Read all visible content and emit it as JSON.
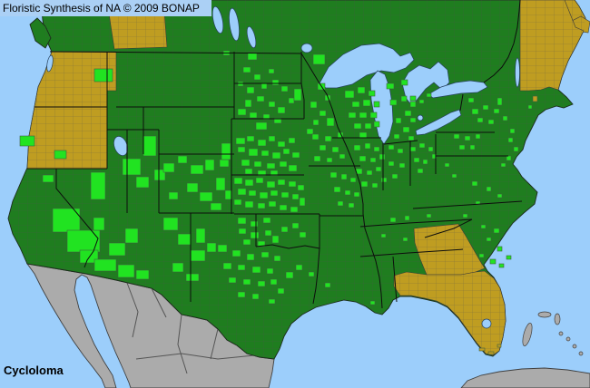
{
  "header": {
    "title": "Floristic Synthesis of NA © 2009 BONAP"
  },
  "footer": {
    "taxon": "Cycloloma"
  },
  "colors": {
    "water": "#9CCEFB",
    "state_present": "#1F7D1F",
    "county_present": "#21E321",
    "state_absent": "#BF9D21",
    "outside_region": "#ABABAB",
    "title_background": "#ABD0F5"
  },
  "map": {
    "absent_regions": [
      "Washington-Oregon",
      "Alberta",
      "Maritimes",
      "Maine-NewHampshire-Vermont",
      "Georgia",
      "Florida"
    ],
    "county_markers": [
      [
        22,
        150,
        16,
        11
      ],
      [
        60,
        166,
        13,
        9
      ],
      [
        47,
        193,
        12,
        8
      ],
      [
        58,
        230,
        30,
        26
      ],
      [
        74,
        254,
        36,
        24
      ],
      [
        88,
        276,
        20,
        14
      ],
      [
        100,
        190,
        16,
        30
      ],
      [
        103,
        240,
        12,
        14
      ],
      [
        135,
        175,
        20,
        18
      ],
      [
        150,
        195,
        14,
        12
      ],
      [
        158,
        150,
        14,
        22
      ],
      [
        170,
        187,
        12,
        12
      ],
      [
        104,
        286,
        24,
        13
      ],
      [
        130,
        292,
        18,
        14
      ],
      [
        150,
        298,
        14,
        10
      ],
      [
        120,
        268,
        18,
        14
      ],
      [
        138,
        252,
        14,
        16
      ],
      [
        104,
        76,
        20,
        14
      ],
      [
        180,
        240,
        16,
        14
      ],
      [
        196,
        258,
        14,
        12
      ],
      [
        210,
        276,
        16,
        12
      ],
      [
        190,
        290,
        12,
        10
      ],
      [
        216,
        252,
        10,
        16
      ],
      [
        205,
        302,
        14,
        8
      ],
      [
        228,
        268,
        10,
        10
      ],
      [
        180,
        180,
        12,
        10
      ],
      [
        196,
        172,
        10,
        8
      ],
      [
        210,
        182,
        14,
        10
      ],
      [
        226,
        176,
        10,
        12
      ],
      [
        206,
        202,
        12,
        10
      ],
      [
        220,
        212,
        14,
        10
      ],
      [
        238,
        196,
        10,
        14
      ],
      [
        186,
        212,
        10,
        8
      ],
      [
        232,
        224,
        12,
        8
      ],
      [
        242,
        176,
        10,
        8
      ],
      [
        248,
        210,
        8,
        10
      ],
      [
        246,
        56,
        7,
        5
      ],
      [
        273,
        58,
        10,
        8
      ],
      [
        268,
        74,
        8,
        6
      ],
      [
        280,
        82,
        7,
        6
      ],
      [
        262,
        90,
        6,
        5
      ],
      [
        272,
        96,
        8,
        7
      ],
      [
        288,
        92,
        6,
        6
      ],
      [
        300,
        88,
        7,
        6
      ],
      [
        296,
        76,
        6,
        5
      ],
      [
        310,
        95,
        7,
        6
      ],
      [
        283,
        106,
        8,
        6
      ],
      [
        296,
        112,
        7,
        6
      ],
      [
        270,
        110,
        7,
        8
      ],
      [
        306,
        118,
        8,
        7
      ],
      [
        318,
        108,
        6,
        6
      ],
      [
        324,
        98,
        8,
        13
      ],
      [
        345,
        60,
        13,
        11
      ],
      [
        350,
        92,
        8,
        7
      ],
      [
        342,
        112,
        7,
        7
      ],
      [
        358,
        105,
        6,
        6
      ],
      [
        352,
        122,
        7,
        6
      ],
      [
        345,
        132,
        6,
        6
      ],
      [
        360,
        130,
        8,
        9
      ],
      [
        338,
        142,
        7,
        6
      ],
      [
        262,
        120,
        9,
        7
      ],
      [
        275,
        124,
        8,
        6
      ],
      [
        290,
        126,
        7,
        6
      ],
      [
        302,
        130,
        8,
        6
      ],
      [
        282,
        135,
        12,
        8
      ],
      [
        244,
        158,
        10,
        18
      ],
      [
        260,
        152,
        10,
        7
      ],
      [
        272,
        150,
        8,
        6
      ],
      [
        284,
        154,
        9,
        7
      ],
      [
        296,
        150,
        7,
        6
      ],
      [
        306,
        156,
        8,
        6
      ],
      [
        318,
        152,
        7,
        6
      ],
      [
        262,
        162,
        8,
        6
      ],
      [
        274,
        164,
        10,
        8
      ],
      [
        288,
        166,
        8,
        6
      ],
      [
        300,
        168,
        9,
        7
      ],
      [
        312,
        164,
        7,
        6
      ],
      [
        322,
        168,
        8,
        6
      ],
      [
        266,
        176,
        9,
        7
      ],
      [
        280,
        178,
        8,
        6
      ],
      [
        294,
        180,
        9,
        6
      ],
      [
        308,
        178,
        8,
        6
      ],
      [
        318,
        182,
        9,
        7
      ],
      [
        270,
        186,
        8,
        6
      ],
      [
        284,
        188,
        9,
        6
      ],
      [
        298,
        188,
        8,
        6
      ],
      [
        258,
        196,
        9,
        7
      ],
      [
        270,
        198,
        9,
        7
      ],
      [
        282,
        196,
        8,
        6
      ],
      [
        294,
        200,
        9,
        7
      ],
      [
        306,
        198,
        8,
        6
      ],
      [
        318,
        200,
        8,
        6
      ],
      [
        328,
        204,
        7,
        6
      ],
      [
        262,
        208,
        9,
        7
      ],
      [
        274,
        210,
        8,
        6
      ],
      [
        286,
        212,
        9,
        7
      ],
      [
        298,
        210,
        8,
        6
      ],
      [
        310,
        212,
        8,
        6
      ],
      [
        322,
        214,
        7,
        6
      ],
      [
        258,
        220,
        8,
        6
      ],
      [
        270,
        222,
        9,
        7
      ],
      [
        284,
        224,
        8,
        6
      ],
      [
        296,
        222,
        8,
        6
      ],
      [
        308,
        226,
        8,
        6
      ],
      [
        320,
        228,
        8,
        6
      ],
      [
        330,
        218,
        6,
        9
      ],
      [
        262,
        240,
        9,
        7
      ],
      [
        276,
        244,
        8,
        6
      ],
      [
        290,
        240,
        8,
        6
      ],
      [
        263,
        252,
        8,
        6
      ],
      [
        276,
        256,
        9,
        7
      ],
      [
        292,
        254,
        7,
        6
      ],
      [
        268,
        264,
        8,
        6
      ],
      [
        284,
        266,
        8,
        6
      ],
      [
        300,
        260,
        7,
        8
      ],
      [
        310,
        250,
        7,
        6
      ],
      [
        322,
        246,
        7,
        6
      ],
      [
        330,
        256,
        7,
        6
      ],
      [
        240,
        270,
        10,
        8
      ],
      [
        256,
        276,
        9,
        7
      ],
      [
        272,
        280,
        8,
        7
      ],
      [
        288,
        278,
        8,
        6
      ],
      [
        302,
        282,
        7,
        6
      ],
      [
        246,
        290,
        9,
        7
      ],
      [
        262,
        292,
        8,
        6
      ],
      [
        278,
        294,
        9,
        7
      ],
      [
        294,
        296,
        7,
        6
      ],
      [
        252,
        306,
        8,
        6
      ],
      [
        268,
        308,
        8,
        6
      ],
      [
        284,
        310,
        8,
        6
      ],
      [
        298,
        308,
        7,
        6
      ],
      [
        262,
        322,
        8,
        6
      ],
      [
        278,
        324,
        7,
        6
      ],
      [
        306,
        318,
        7,
        6
      ],
      [
        315,
        300,
        8,
        7
      ],
      [
        326,
        292,
        7,
        6
      ],
      [
        296,
        330,
        7,
        5
      ],
      [
        340,
        300,
        6,
        5
      ],
      [
        358,
        312,
        6,
        5
      ],
      [
        408,
        332,
        5,
        4
      ],
      [
        380,
        100,
        10,
        8
      ],
      [
        394,
        96,
        8,
        7
      ],
      [
        406,
        100,
        7,
        6
      ],
      [
        388,
        112,
        8,
        6
      ],
      [
        400,
        110,
        8,
        7
      ],
      [
        412,
        112,
        6,
        6
      ],
      [
        384,
        124,
        8,
        6
      ],
      [
        396,
        124,
        8,
        6
      ],
      [
        408,
        124,
        7,
        6
      ],
      [
        390,
        136,
        8,
        6
      ],
      [
        402,
        136,
        7,
        6
      ],
      [
        412,
        134,
        6,
        6
      ],
      [
        396,
        146,
        8,
        6
      ],
      [
        426,
        92,
        8,
        6
      ],
      [
        442,
        88,
        7,
        6
      ],
      [
        430,
        110,
        7,
        6
      ],
      [
        442,
        106,
        6,
        6
      ],
      [
        452,
        112,
        6,
        6
      ],
      [
        446,
        122,
        7,
        6
      ],
      [
        436,
        130,
        6,
        6
      ],
      [
        452,
        130,
        6,
        5
      ],
      [
        444,
        140,
        7,
        6
      ],
      [
        434,
        148,
        6,
        5
      ],
      [
        450,
        150,
        6,
        5
      ],
      [
        344,
        148,
        7,
        6
      ],
      [
        358,
        150,
        7,
        6
      ],
      [
        372,
        146,
        6,
        6
      ],
      [
        352,
        160,
        7,
        6
      ],
      [
        366,
        162,
        7,
        6
      ],
      [
        346,
        172,
        7,
        6
      ],
      [
        360,
        174,
        6,
        5
      ],
      [
        374,
        170,
        6,
        5
      ],
      [
        390,
        160,
        7,
        6
      ],
      [
        402,
        158,
        6,
        6
      ],
      [
        412,
        162,
        6,
        5
      ],
      [
        396,
        172,
        7,
        6
      ],
      [
        408,
        174,
        6,
        5
      ],
      [
        418,
        170,
        6,
        6
      ],
      [
        392,
        186,
        7,
        6
      ],
      [
        404,
        188,
        6,
        5
      ],
      [
        414,
        184,
        6,
        5
      ],
      [
        398,
        200,
        7,
        6
      ],
      [
        410,
        202,
        6,
        5
      ],
      [
        420,
        196,
        6,
        5
      ],
      [
        428,
        160,
        6,
        5
      ],
      [
        438,
        164,
        6,
        5
      ],
      [
        428,
        178,
        6,
        5
      ],
      [
        440,
        180,
        6,
        5
      ],
      [
        432,
        192,
        6,
        5
      ],
      [
        364,
        190,
        7,
        6
      ],
      [
        376,
        192,
        6,
        6
      ],
      [
        386,
        196,
        6,
        5
      ],
      [
        368,
        206,
        7,
        6
      ],
      [
        380,
        210,
        6,
        5
      ],
      [
        390,
        212,
        6,
        5
      ],
      [
        372,
        222,
        6,
        5
      ],
      [
        384,
        224,
        6,
        5
      ],
      [
        452,
        162,
        6,
        5
      ],
      [
        462,
        158,
        6,
        5
      ],
      [
        472,
        162,
        5,
        5
      ],
      [
        456,
        174,
        6,
        5
      ],
      [
        466,
        176,
        5,
        5
      ],
      [
        476,
        170,
        5,
        5
      ],
      [
        460,
        186,
        6,
        5
      ],
      [
        430,
        240,
        6,
        5
      ],
      [
        446,
        238,
        5,
        5
      ],
      [
        470,
        236,
        5,
        4
      ],
      [
        420,
        258,
        5,
        4
      ],
      [
        444,
        262,
        5,
        4
      ],
      [
        452,
        106,
        6,
        5
      ],
      [
        462,
        110,
        5,
        4
      ],
      [
        470,
        103,
        5,
        4
      ],
      [
        516,
        108,
        6,
        5
      ],
      [
        520,
        120,
        7,
        6
      ],
      [
        532,
        116,
        6,
        5
      ],
      [
        544,
        120,
        6,
        5
      ],
      [
        526,
        130,
        6,
        5
      ],
      [
        538,
        132,
        6,
        5
      ],
      [
        548,
        108,
        5,
        8
      ],
      [
        554,
        128,
        5,
        5
      ],
      [
        500,
        148,
        6,
        5
      ],
      [
        512,
        150,
        6,
        5
      ],
      [
        524,
        148,
        5,
        5
      ],
      [
        506,
        160,
        6,
        5
      ],
      [
        518,
        160,
        5,
        5
      ],
      [
        560,
        152,
        5,
        5
      ],
      [
        566,
        162,
        5,
        5
      ],
      [
        558,
        172,
        5,
        5
      ],
      [
        552,
        180,
        5,
        4
      ],
      [
        562,
        142,
        5,
        5
      ],
      [
        490,
        180,
        5,
        4
      ],
      [
        498,
        192,
        5,
        4
      ],
      [
        520,
        200,
        6,
        5
      ],
      [
        536,
        206,
        5,
        5
      ],
      [
        548,
        214,
        5,
        4
      ],
      [
        524,
        222,
        5,
        4
      ],
      [
        510,
        236,
        5,
        4
      ],
      [
        530,
        248,
        5,
        4
      ],
      [
        544,
        252,
        6,
        5
      ],
      [
        536,
        262,
        5,
        4
      ],
      [
        548,
        272,
        5,
        5
      ],
      [
        528,
        280,
        5,
        4
      ],
      [
        540,
        286,
        6,
        5
      ],
      [
        550,
        291,
        5,
        4
      ],
      [
        558,
        282,
        5,
        4
      ],
      [
        582,
        116,
        4,
        4
      ]
    ],
    "absent_markers": [
      [
        587,
        106,
        5,
        6
      ],
      [
        528,
        384,
        6,
        3
      ],
      [
        538,
        388,
        6,
        3
      ],
      [
        548,
        380,
        4,
        3
      ]
    ]
  }
}
